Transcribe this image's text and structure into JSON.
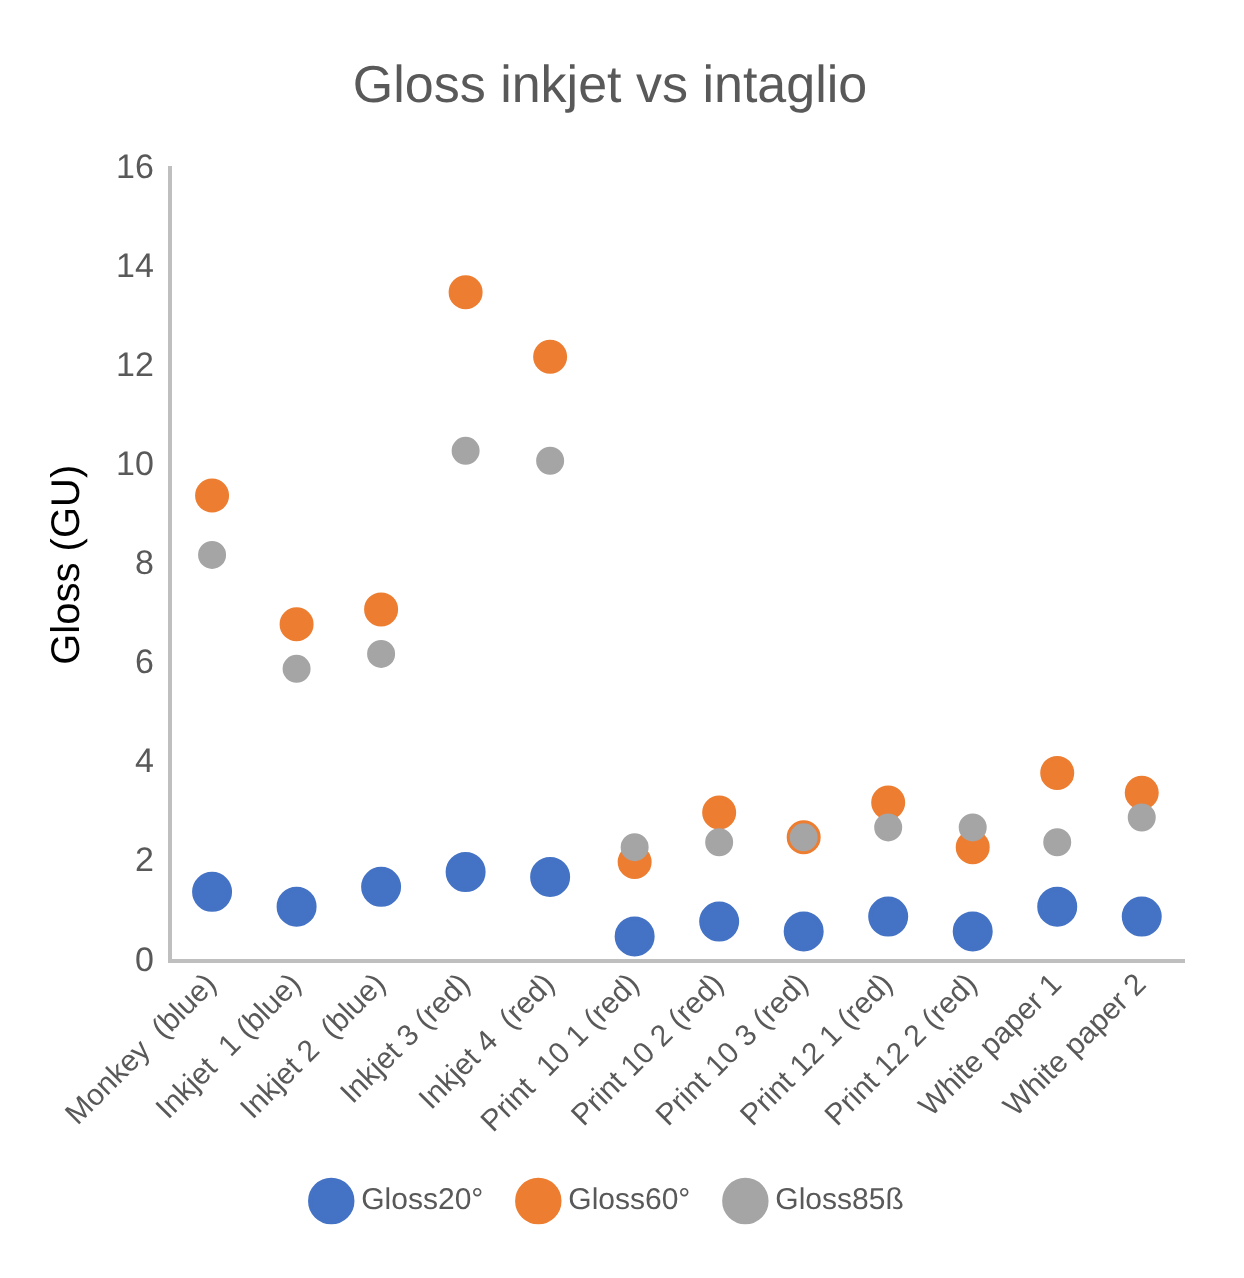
{
  "chart_data": {
    "type": "scatter",
    "title": "Gloss inkjet vs intaglio",
    "ylabel": "Gloss (GU)",
    "categories": [
      "Monkey  (blue)",
      "Inkjet  1 (blue)",
      "Inkjet 2  (blue)",
      "Inkjet 3 (red)",
      "Inkjet 4  (red)",
      "Print  10 1 (red)",
      "Print 10 2 (red)",
      "Print 10 3 (red)",
      "Print 12 1 (red)",
      "Print 12 2 (red)",
      "White paper 1",
      "White paper 2"
    ],
    "series": [
      {
        "name": "Gloss20°",
        "color": "#4472c4",
        "values": [
          1.4,
          1.1,
          1.5,
          1.8,
          1.7,
          0.5,
          0.8,
          0.6,
          0.9,
          0.6,
          1.1,
          0.9
        ]
      },
      {
        "name": "Gloss60°",
        "color": "#ed7d31",
        "values": [
          9.4,
          6.8,
          7.1,
          13.5,
          12.2,
          2.0,
          3.0,
          2.5,
          3.2,
          2.3,
          3.8,
          3.4
        ]
      },
      {
        "name": "Gloss85ß",
        "color": "#a5a5a5",
        "values": [
          8.2,
          5.9,
          6.2,
          10.3,
          10.1,
          2.3,
          2.4,
          2.5,
          2.7,
          2.7,
          2.4,
          2.9
        ]
      }
    ],
    "ylim": [
      0,
      16
    ],
    "yticks": [
      0,
      2,
      4,
      6,
      8,
      10,
      12,
      14,
      16
    ],
    "grid": false,
    "legend": "bottom",
    "marker": "circle"
  }
}
